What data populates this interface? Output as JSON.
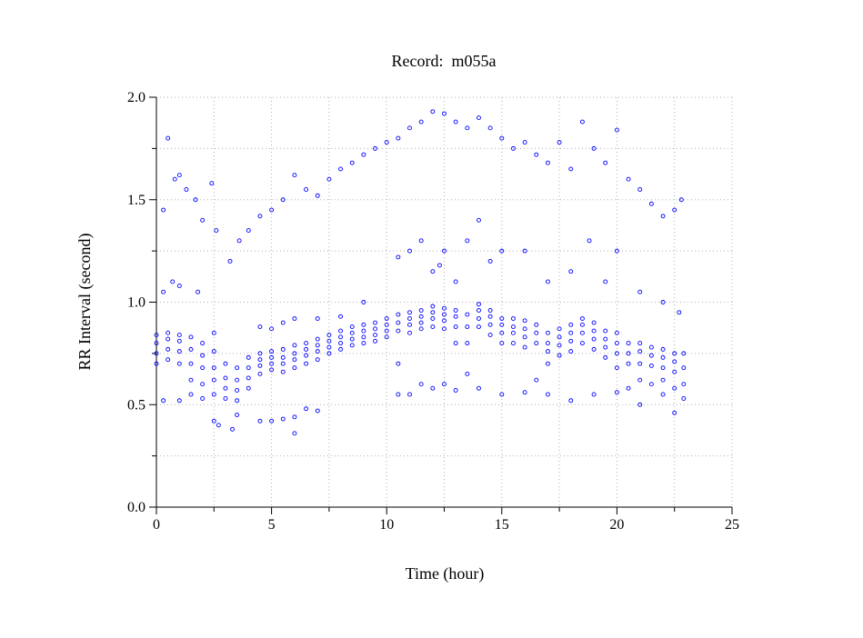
{
  "chart_data": {
    "type": "scatter",
    "title": "Record:  m055a",
    "xlabel": "Time (hour)",
    "ylabel": "RR Interval (second)",
    "xlim": [
      0,
      25
    ],
    "ylim": [
      0,
      2.0
    ],
    "xticks": [
      "0",
      "5",
      "10",
      "15",
      "20",
      "25"
    ],
    "xtick_values": [
      0,
      5,
      10,
      15,
      20,
      25
    ],
    "yticks": [
      "0.0",
      "0.5",
      "1.0",
      "1.5",
      "2.0"
    ],
    "ytick_values": [
      0,
      0.5,
      1.0,
      1.5,
      2.0
    ],
    "grid": true,
    "grid_style": "dotted",
    "marker": "open-circle",
    "color": "#0000ff",
    "points": [
      [
        0,
        0.7
      ],
      [
        0,
        0.75
      ],
      [
        0,
        0.8
      ],
      [
        0,
        0.84
      ],
      [
        0.5,
        0.72
      ],
      [
        0.5,
        0.77
      ],
      [
        0.5,
        0.82
      ],
      [
        0.5,
        0.85
      ],
      [
        1,
        0.7
      ],
      [
        1,
        0.76
      ],
      [
        1,
        0.81
      ],
      [
        1,
        0.84
      ],
      [
        1.5,
        0.62
      ],
      [
        1.5,
        0.7
      ],
      [
        1.5,
        0.77
      ],
      [
        1.5,
        0.83
      ],
      [
        2,
        0.6
      ],
      [
        2,
        0.68
      ],
      [
        2,
        0.74
      ],
      [
        2,
        0.8
      ],
      [
        2.5,
        0.55
      ],
      [
        2.5,
        0.62
      ],
      [
        2.5,
        0.68
      ],
      [
        2.5,
        0.76
      ],
      [
        3,
        0.53
      ],
      [
        3,
        0.58
      ],
      [
        3,
        0.63
      ],
      [
        3,
        0.7
      ],
      [
        3.5,
        0.52
      ],
      [
        3.5,
        0.57
      ],
      [
        3.5,
        0.62
      ],
      [
        3.5,
        0.68
      ],
      [
        4,
        0.58
      ],
      [
        4,
        0.63
      ],
      [
        4,
        0.68
      ],
      [
        4,
        0.73
      ],
      [
        4.5,
        0.65
      ],
      [
        4.5,
        0.69
      ],
      [
        4.5,
        0.72
      ],
      [
        4.5,
        0.75
      ],
      [
        5,
        0.67
      ],
      [
        5,
        0.7
      ],
      [
        5,
        0.73
      ],
      [
        5,
        0.76
      ],
      [
        5.5,
        0.66
      ],
      [
        5.5,
        0.7
      ],
      [
        5.5,
        0.73
      ],
      [
        5.5,
        0.77
      ],
      [
        6,
        0.68
      ],
      [
        6,
        0.72
      ],
      [
        6,
        0.75
      ],
      [
        6,
        0.79
      ],
      [
        6.5,
        0.7
      ],
      [
        6.5,
        0.74
      ],
      [
        6.5,
        0.77
      ],
      [
        6.5,
        0.8
      ],
      [
        7,
        0.72
      ],
      [
        7,
        0.76
      ],
      [
        7,
        0.79
      ],
      [
        7,
        0.82
      ],
      [
        7.5,
        0.75
      ],
      [
        7.5,
        0.78
      ],
      [
        7.5,
        0.81
      ],
      [
        7.5,
        0.84
      ],
      [
        8,
        0.77
      ],
      [
        8,
        0.8
      ],
      [
        8,
        0.83
      ],
      [
        8,
        0.86
      ],
      [
        8.5,
        0.79
      ],
      [
        8.5,
        0.82
      ],
      [
        8.5,
        0.85
      ],
      [
        8.5,
        0.88
      ],
      [
        9,
        0.8
      ],
      [
        9,
        0.83
      ],
      [
        9,
        0.86
      ],
      [
        9,
        0.89
      ],
      [
        9.5,
        0.81
      ],
      [
        9.5,
        0.84
      ],
      [
        9.5,
        0.87
      ],
      [
        9.5,
        0.9
      ],
      [
        10,
        0.83
      ],
      [
        10,
        0.86
      ],
      [
        10,
        0.89
      ],
      [
        10,
        0.92
      ],
      [
        10.5,
        0.7
      ],
      [
        10.5,
        0.86
      ],
      [
        10.5,
        0.9
      ],
      [
        10.5,
        0.94
      ],
      [
        11,
        0.85
      ],
      [
        11,
        0.89
      ],
      [
        11,
        0.92
      ],
      [
        11,
        0.95
      ],
      [
        11.5,
        0.87
      ],
      [
        11.5,
        0.9
      ],
      [
        11.5,
        0.93
      ],
      [
        11.5,
        0.96
      ],
      [
        12,
        0.88
      ],
      [
        12,
        0.92
      ],
      [
        12,
        0.95
      ],
      [
        12,
        0.98
      ],
      [
        12.5,
        0.87
      ],
      [
        12.5,
        0.91
      ],
      [
        12.5,
        0.94
      ],
      [
        12.5,
        0.97
      ],
      [
        13,
        0.8
      ],
      [
        13,
        0.88
      ],
      [
        13,
        0.93
      ],
      [
        13,
        0.96
      ],
      [
        13.5,
        0.65
      ],
      [
        13.5,
        0.8
      ],
      [
        13.5,
        0.88
      ],
      [
        13.5,
        0.94
      ],
      [
        14,
        0.88
      ],
      [
        14,
        0.92
      ],
      [
        14,
        0.96
      ],
      [
        14,
        0.99
      ],
      [
        14.5,
        0.84
      ],
      [
        14.5,
        0.89
      ],
      [
        14.5,
        0.93
      ],
      [
        14.5,
        0.96
      ],
      [
        15,
        0.8
      ],
      [
        15,
        0.85
      ],
      [
        15,
        0.89
      ],
      [
        15,
        0.92
      ],
      [
        15.5,
        0.8
      ],
      [
        15.5,
        0.85
      ],
      [
        15.5,
        0.88
      ],
      [
        15.5,
        0.92
      ],
      [
        16,
        0.78
      ],
      [
        16,
        0.83
      ],
      [
        16,
        0.87
      ],
      [
        16,
        0.91
      ],
      [
        16.5,
        0.62
      ],
      [
        16.5,
        0.8
      ],
      [
        16.5,
        0.85
      ],
      [
        16.5,
        0.89
      ],
      [
        17,
        0.7
      ],
      [
        17,
        0.76
      ],
      [
        17,
        0.8
      ],
      [
        17,
        0.85
      ],
      [
        17.5,
        0.74
      ],
      [
        17.5,
        0.79
      ],
      [
        17.5,
        0.83
      ],
      [
        17.5,
        0.87
      ],
      [
        18,
        0.76
      ],
      [
        18,
        0.81
      ],
      [
        18,
        0.85
      ],
      [
        18,
        0.89
      ],
      [
        18.5,
        0.8
      ],
      [
        18.5,
        0.85
      ],
      [
        18.5,
        0.89
      ],
      [
        18.5,
        0.92
      ],
      [
        19,
        0.77
      ],
      [
        19,
        0.82
      ],
      [
        19,
        0.86
      ],
      [
        19,
        0.9
      ],
      [
        19.5,
        0.73
      ],
      [
        19.5,
        0.78
      ],
      [
        19.5,
        0.82
      ],
      [
        19.5,
        0.86
      ],
      [
        20,
        0.68
      ],
      [
        20,
        0.75
      ],
      [
        20,
        0.8
      ],
      [
        20,
        0.85
      ],
      [
        20.5,
        0.58
      ],
      [
        20.5,
        0.7
      ],
      [
        20.5,
        0.75
      ],
      [
        20.5,
        0.8
      ],
      [
        21,
        0.62
      ],
      [
        21,
        0.7
      ],
      [
        21,
        0.76
      ],
      [
        21,
        0.8
      ],
      [
        21.5,
        0.6
      ],
      [
        21.5,
        0.69
      ],
      [
        21.5,
        0.74
      ],
      [
        21.5,
        0.78
      ],
      [
        22,
        0.62
      ],
      [
        22,
        0.68
      ],
      [
        22,
        0.73
      ],
      [
        22,
        0.77
      ],
      [
        22.5,
        0.58
      ],
      [
        22.5,
        0.66
      ],
      [
        22.5,
        0.71
      ],
      [
        22.5,
        0.75
      ],
      [
        22.9,
        0.53
      ],
      [
        22.9,
        0.6
      ],
      [
        22.9,
        0.68
      ],
      [
        22.9,
        0.75
      ],
      [
        0.3,
        1.45
      ],
      [
        0.5,
        1.8
      ],
      [
        0.8,
        1.6
      ],
      [
        1,
        1.62
      ],
      [
        1.3,
        1.55
      ],
      [
        1.7,
        1.5
      ],
      [
        2,
        1.4
      ],
      [
        2.4,
        1.58
      ],
      [
        2.6,
        1.35
      ],
      [
        3.2,
        1.2
      ],
      [
        3.6,
        1.3
      ],
      [
        4,
        1.35
      ],
      [
        4.5,
        1.42
      ],
      [
        5,
        1.45
      ],
      [
        5.5,
        1.5
      ],
      [
        6,
        1.62
      ],
      [
        6.5,
        1.55
      ],
      [
        7,
        1.52
      ],
      [
        7.5,
        1.6
      ],
      [
        8,
        1.65
      ],
      [
        8.5,
        1.68
      ],
      [
        9,
        1.72
      ],
      [
        9.5,
        1.75
      ],
      [
        10,
        1.78
      ],
      [
        10.5,
        1.8
      ],
      [
        11,
        1.85
      ],
      [
        11.5,
        1.88
      ],
      [
        12,
        1.93
      ],
      [
        12.5,
        1.92
      ],
      [
        13,
        1.88
      ],
      [
        13.5,
        1.85
      ],
      [
        14,
        1.9
      ],
      [
        14.5,
        1.85
      ],
      [
        15,
        1.8
      ],
      [
        15.5,
        1.75
      ],
      [
        16,
        1.78
      ],
      [
        16.5,
        1.72
      ],
      [
        17,
        1.68
      ],
      [
        17.5,
        1.78
      ],
      [
        18,
        1.65
      ],
      [
        18.5,
        1.88
      ],
      [
        19,
        1.75
      ],
      [
        19.5,
        1.68
      ],
      [
        20,
        1.84
      ],
      [
        20.5,
        1.6
      ],
      [
        21,
        1.55
      ],
      [
        21.5,
        1.48
      ],
      [
        22,
        1.42
      ],
      [
        22.5,
        1.45
      ],
      [
        22.8,
        1.5
      ],
      [
        0.3,
        1.05
      ],
      [
        0.7,
        1.1
      ],
      [
        1,
        1.08
      ],
      [
        1.8,
        1.05
      ],
      [
        2.5,
        0.85
      ],
      [
        4.5,
        0.88
      ],
      [
        5,
        0.87
      ],
      [
        5.5,
        0.9
      ],
      [
        6,
        0.92
      ],
      [
        7,
        0.92
      ],
      [
        8,
        0.93
      ],
      [
        9,
        1.0
      ],
      [
        10.5,
        1.22
      ],
      [
        11,
        1.25
      ],
      [
        11.5,
        1.3
      ],
      [
        12,
        1.15
      ],
      [
        12.3,
        1.18
      ],
      [
        12.5,
        1.25
      ],
      [
        13,
        1.1
      ],
      [
        13.5,
        1.3
      ],
      [
        14,
        1.4
      ],
      [
        14.5,
        1.2
      ],
      [
        15,
        1.25
      ],
      [
        16,
        1.25
      ],
      [
        17,
        1.1
      ],
      [
        18,
        1.15
      ],
      [
        18.8,
        1.3
      ],
      [
        19.5,
        1.1
      ],
      [
        20,
        1.25
      ],
      [
        21,
        1.05
      ],
      [
        22,
        1.0
      ],
      [
        22.7,
        0.95
      ],
      [
        0.3,
        0.52
      ],
      [
        1,
        0.52
      ],
      [
        1.5,
        0.55
      ],
      [
        2,
        0.53
      ],
      [
        2.5,
        0.42
      ],
      [
        2.7,
        0.4
      ],
      [
        3.3,
        0.38
      ],
      [
        3.5,
        0.45
      ],
      [
        4.5,
        0.42
      ],
      [
        5,
        0.42
      ],
      [
        5.5,
        0.43
      ],
      [
        6,
        0.44
      ],
      [
        6,
        0.36
      ],
      [
        6.5,
        0.48
      ],
      [
        7,
        0.47
      ],
      [
        10.5,
        0.55
      ],
      [
        11,
        0.55
      ],
      [
        11.5,
        0.6
      ],
      [
        12,
        0.58
      ],
      [
        12.5,
        0.6
      ],
      [
        13,
        0.57
      ],
      [
        14,
        0.58
      ],
      [
        15,
        0.55
      ],
      [
        16,
        0.56
      ],
      [
        17,
        0.55
      ],
      [
        18,
        0.52
      ],
      [
        19,
        0.55
      ],
      [
        20,
        0.56
      ],
      [
        21,
        0.5
      ],
      [
        22,
        0.55
      ],
      [
        22.5,
        0.46
      ]
    ]
  }
}
